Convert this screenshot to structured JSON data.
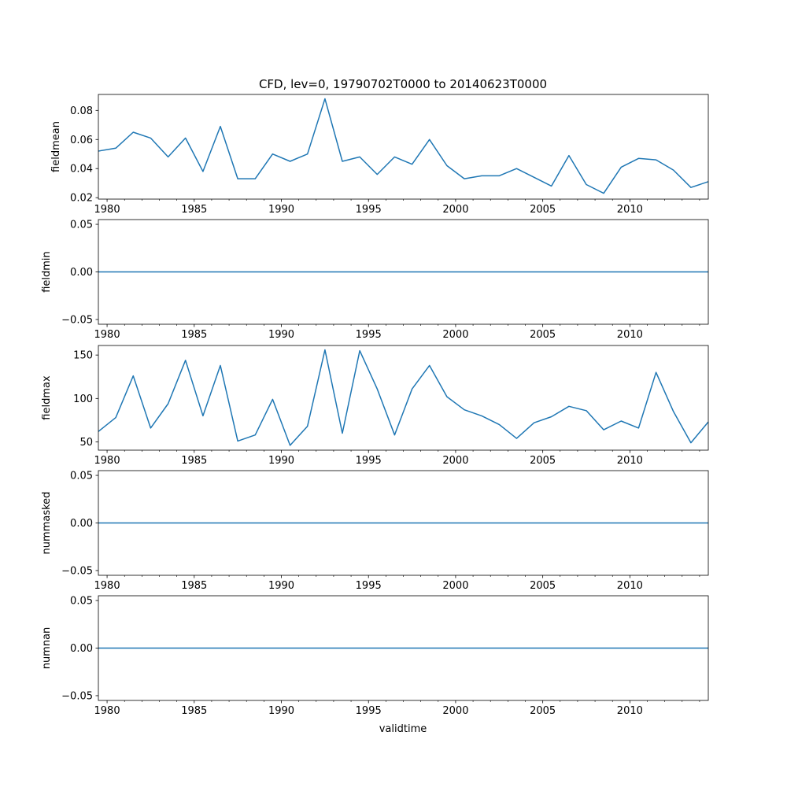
{
  "chart_data": {
    "type": "line",
    "title": "CFD, lev=0, 19790702T0000 to 20140623T0000",
    "xlabel": "validtime",
    "x_tick_labels": [
      "1980",
      "1985",
      "1990",
      "1995",
      "2000",
      "2005",
      "2010"
    ],
    "xlim": [
      1979.5,
      2014.5
    ],
    "x": [
      1979.5,
      1980.5,
      1981.5,
      1982.5,
      1983.5,
      1984.5,
      1985.5,
      1986.5,
      1987.5,
      1988.5,
      1989.5,
      1990.5,
      1991.5,
      1992.5,
      1993.5,
      1994.5,
      1995.5,
      1996.5,
      1997.5,
      1998.5,
      1999.5,
      2000.5,
      2001.5,
      2002.5,
      2003.5,
      2004.5,
      2005.5,
      2006.5,
      2007.5,
      2008.5,
      2009.5,
      2010.5,
      2011.5,
      2012.5,
      2013.5,
      2014.5
    ],
    "series": [
      {
        "name": "fieldmean",
        "ylabel": "fieldmean",
        "ylim": [
          0.019,
          0.091
        ],
        "y_ticks": [
          0.02,
          0.04,
          0.06,
          0.08
        ],
        "y_tick_labels": [
          "0.02",
          "0.04",
          "0.06",
          "0.08"
        ],
        "values": [
          0.052,
          0.054,
          0.065,
          0.061,
          0.048,
          0.061,
          0.038,
          0.069,
          0.033,
          0.033,
          0.05,
          0.045,
          0.05,
          0.088,
          0.045,
          0.048,
          0.036,
          0.048,
          0.043,
          0.06,
          0.042,
          0.033,
          0.035,
          0.035,
          0.04,
          0.034,
          0.028,
          0.049,
          0.029,
          0.023,
          0.041,
          0.047,
          0.046,
          0.039,
          0.027,
          0.031
        ]
      },
      {
        "name": "fieldmin",
        "ylabel": "fieldmin",
        "ylim": [
          -0.055,
          0.055
        ],
        "y_ticks": [
          -0.05,
          0.0,
          0.05
        ],
        "y_tick_labels": [
          "−0.05",
          "0.00",
          "0.05"
        ],
        "values": [
          0,
          0,
          0,
          0,
          0,
          0,
          0,
          0,
          0,
          0,
          0,
          0,
          0,
          0,
          0,
          0,
          0,
          0,
          0,
          0,
          0,
          0,
          0,
          0,
          0,
          0,
          0,
          0,
          0,
          0,
          0,
          0,
          0,
          0,
          0,
          0
        ]
      },
      {
        "name": "fieldmax",
        "ylabel": "fieldmax",
        "ylim": [
          40.5,
          161
        ],
        "y_ticks": [
          50,
          100,
          150
        ],
        "y_tick_labels": [
          "50",
          "100",
          "150"
        ],
        "values": [
          62,
          78,
          126,
          66,
          94,
          144,
          80,
          138,
          51,
          58,
          99,
          46,
          68,
          156,
          60,
          155,
          111,
          58,
          111,
          138,
          102,
          87,
          80,
          70,
          54,
          72,
          79,
          91,
          86,
          64,
          74,
          66,
          130,
          85,
          49,
          73
        ]
      },
      {
        "name": "nummasked",
        "ylabel": "nummasked",
        "ylim": [
          -0.055,
          0.055
        ],
        "y_ticks": [
          -0.05,
          0.0,
          0.05
        ],
        "y_tick_labels": [
          "−0.05",
          "0.00",
          "0.05"
        ],
        "values": [
          0,
          0,
          0,
          0,
          0,
          0,
          0,
          0,
          0,
          0,
          0,
          0,
          0,
          0,
          0,
          0,
          0,
          0,
          0,
          0,
          0,
          0,
          0,
          0,
          0,
          0,
          0,
          0,
          0,
          0,
          0,
          0,
          0,
          0,
          0,
          0
        ]
      },
      {
        "name": "numnan",
        "ylabel": "numnan",
        "ylim": [
          -0.055,
          0.055
        ],
        "y_ticks": [
          -0.05,
          0.0,
          0.05
        ],
        "y_tick_labels": [
          "−0.05",
          "0.00",
          "0.05"
        ],
        "values": [
          0,
          0,
          0,
          0,
          0,
          0,
          0,
          0,
          0,
          0,
          0,
          0,
          0,
          0,
          0,
          0,
          0,
          0,
          0,
          0,
          0,
          0,
          0,
          0,
          0,
          0,
          0,
          0,
          0,
          0,
          0,
          0,
          0,
          0,
          0,
          0
        ]
      }
    ],
    "line_color": "#1f77b4",
    "grid": false,
    "legend": "none"
  }
}
